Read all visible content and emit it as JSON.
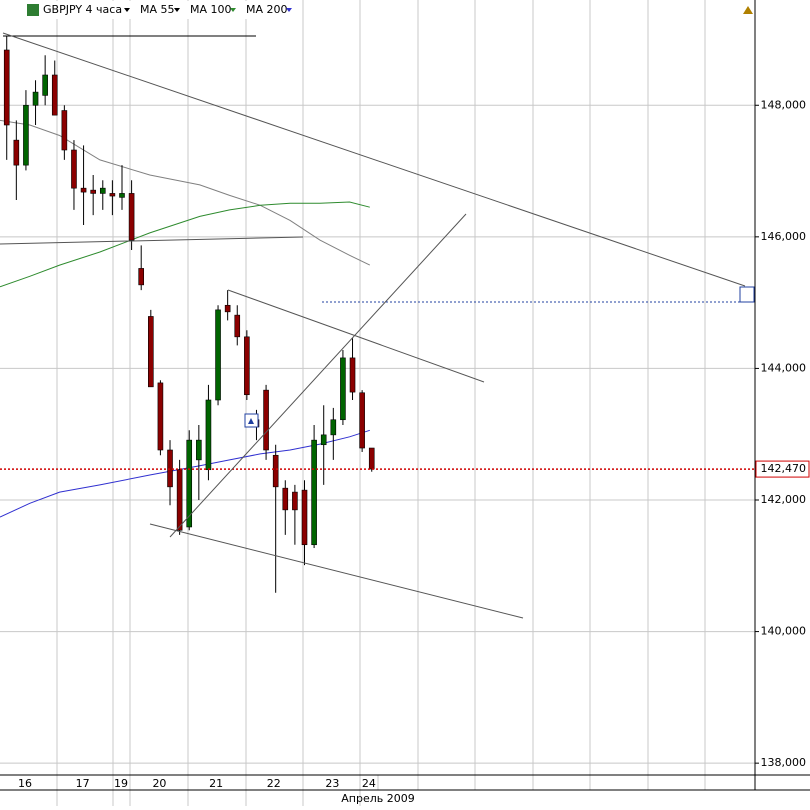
{
  "chart_data": {
    "type": "candlestick",
    "title": "GBPJPY 4 часа",
    "x_label": "Апрель 2009",
    "xlim": [
      -0.7,
      77.9
    ],
    "ylim": [
      137820,
      149600
    ],
    "xticks": [
      {
        "value": 1.9,
        "label": "16"
      },
      {
        "value": 7.9,
        "label": "17"
      },
      {
        "value": 11.9,
        "label": "19"
      },
      {
        "value": 15.9,
        "label": "20"
      },
      {
        "value": 21.8,
        "label": "21"
      },
      {
        "value": 27.8,
        "label": "22"
      },
      {
        "value": 33.9,
        "label": "23"
      },
      {
        "value": 37.7,
        "label": "24"
      }
    ],
    "yticks": [
      {
        "value": 138000,
        "label": "138,000"
      },
      {
        "value": 140000,
        "label": "140,000"
      },
      {
        "value": 142000,
        "label": "142,000"
      },
      {
        "value": 144000,
        "label": "144,000"
      },
      {
        "value": 146000,
        "label": "146,000"
      },
      {
        "value": 148000,
        "label": "148,000"
      }
    ],
    "grid": true,
    "up_color": "#006400",
    "down_color": "#8b0000",
    "ohlc": {
      "x": [
        0,
        1,
        2,
        3,
        4,
        5,
        6,
        7,
        8,
        9,
        10,
        11,
        12,
        13,
        14,
        15,
        16,
        17,
        18,
        19,
        20,
        21,
        22,
        23,
        24,
        25,
        26,
        27,
        28,
        29,
        30,
        31,
        32,
        33,
        34,
        35,
        36,
        37,
        38
      ],
      "open": [
        148840,
        147470,
        147090,
        148000,
        148150,
        148460,
        147920,
        147320,
        146740,
        146710,
        146660,
        146660,
        146600,
        146660,
        145520,
        144790,
        143780,
        142760,
        142460,
        141590,
        142610,
        142460,
        143520,
        144960,
        144810,
        144480,
        143220,
        143670,
        142680,
        142180,
        142120,
        142150,
        141320,
        142840,
        142990,
        143220,
        144160,
        143630,
        142790
      ],
      "high": [
        149060,
        147770,
        148230,
        148380,
        148760,
        148680,
        148000,
        147470,
        147390,
        146940,
        146860,
        146860,
        147090,
        146860,
        145870,
        144890,
        143820,
        142910,
        142610,
        143060,
        143140,
        143750,
        144960,
        145190,
        144960,
        144580,
        143370,
        143750,
        142840,
        142300,
        142230,
        142300,
        143140,
        143440,
        143400,
        144280,
        144460,
        143670,
        142790
      ],
      "low": [
        147170,
        146560,
        147010,
        147700,
        148000,
        147850,
        147170,
        146410,
        146180,
        146330,
        146410,
        146330,
        146410,
        145800,
        145190,
        143720,
        142680,
        141920,
        141470,
        141540,
        142000,
        142300,
        143440,
        144730,
        144350,
        143520,
        142910,
        142610,
        140590,
        141470,
        141320,
        141010,
        141270,
        142230,
        142610,
        143140,
        143520,
        142730,
        142430
      ],
      "close": [
        147700,
        147090,
        148000,
        148200,
        148460,
        147850,
        147320,
        146740,
        146680,
        146660,
        146740,
        146620,
        146660,
        145950,
        145270,
        143720,
        142760,
        142200,
        141540,
        142910,
        142910,
        143520,
        144890,
        144860,
        144480,
        143600,
        143110,
        142760,
        142200,
        141850,
        141850,
        141320,
        142910,
        142990,
        143220,
        144160,
        143640,
        142790,
        142470
      ]
    },
    "series": [
      {
        "name": "MA 55",
        "color": "#808080",
        "x": [
          -0.7,
          2.4,
          5.5,
          9.7,
          14.9,
          20.1,
          23.2,
          26.4,
          29.5,
          32.6,
          35.7,
          37.8
        ],
        "values": [
          147770,
          147700,
          147540,
          147170,
          146940,
          146790,
          146630,
          146480,
          146250,
          145950,
          145720,
          145570
        ]
      },
      {
        "name": "MA 100",
        "color": "#2e8b2e",
        "x": [
          -0.7,
          2.4,
          5.5,
          9.7,
          14.9,
          20.1,
          23.2,
          26.4,
          29.5,
          32.6,
          35.7,
          37.8
        ],
        "values": [
          145240,
          145400,
          145570,
          145770,
          146060,
          146310,
          146410,
          146480,
          146510,
          146510,
          146530,
          146450
        ]
      },
      {
        "name": "MA 200",
        "color": "#3030d0",
        "x": [
          -0.7,
          2.4,
          5.5,
          9.7,
          14.9,
          20.1,
          23.2,
          26.4,
          29.5,
          32.6,
          35.7,
          37.8
        ],
        "values": [
          141740,
          141950,
          142120,
          142230,
          142380,
          142520,
          142610,
          142700,
          142760,
          142850,
          142960,
          143060
        ]
      }
    ],
    "last_price": {
      "value": 142470,
      "label": "142,470",
      "color": "#d00000"
    }
  }
}
